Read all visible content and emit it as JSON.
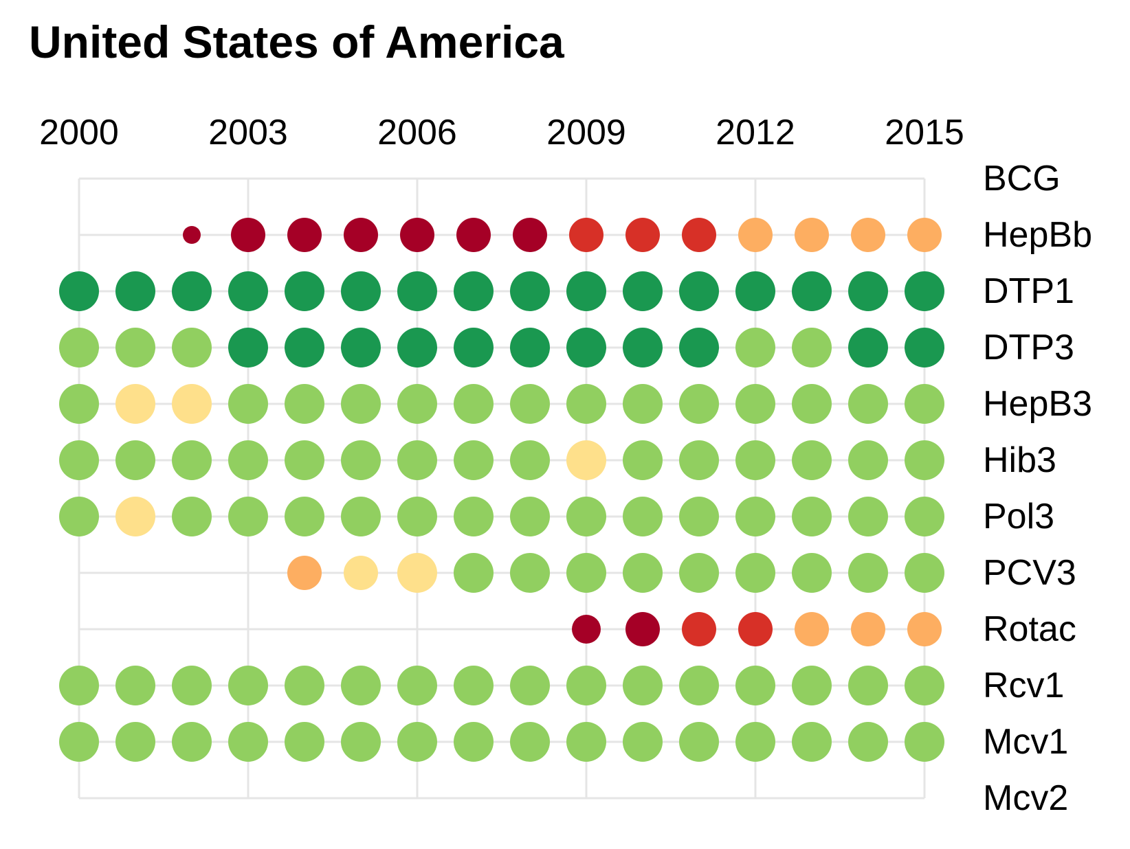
{
  "chart_data": {
    "type": "scatter",
    "title": "United States of America",
    "x": [
      2000,
      2001,
      2002,
      2003,
      2004,
      2005,
      2006,
      2007,
      2008,
      2009,
      2010,
      2011,
      2012,
      2013,
      2014,
      2015
    ],
    "x_ticks": [
      "2000",
      "2003",
      "2006",
      "2009",
      "2012",
      "2015"
    ],
    "categories": [
      "BCG",
      "HepBb",
      "DTP1",
      "DTP3",
      "HepB3",
      "Hib3",
      "Pol3",
      "PCV3",
      "Rotac",
      "Rcv1",
      "Mcv1",
      "Mcv2"
    ],
    "xlabel": "",
    "ylabel": "",
    "grid": true,
    "x_axis_position": "top",
    "y_axis_position": "right",
    "legend": "none",
    "colors": {
      "dark_green": "#1a9850",
      "light_green": "#91cf60",
      "pale_yellow": "#fee08b",
      "light_orange": "#fdae61",
      "red": "#d73027",
      "dark_red": "#a50026",
      "grid": "#e5e5e5"
    },
    "series": [
      {
        "category": "BCG",
        "points": []
      },
      {
        "category": "HepBb",
        "points": [
          {
            "x": 2002,
            "color": "dark_red",
            "size": "small"
          },
          {
            "x": 2003,
            "color": "dark_red",
            "size": "medium"
          },
          {
            "x": 2004,
            "color": "dark_red",
            "size": "medium"
          },
          {
            "x": 2005,
            "color": "dark_red",
            "size": "medium"
          },
          {
            "x": 2006,
            "color": "dark_red",
            "size": "medium"
          },
          {
            "x": 2007,
            "color": "dark_red",
            "size": "medium"
          },
          {
            "x": 2008,
            "color": "dark_red",
            "size": "medium"
          },
          {
            "x": 2009,
            "color": "red",
            "size": "medium"
          },
          {
            "x": 2010,
            "color": "red",
            "size": "medium"
          },
          {
            "x": 2011,
            "color": "red",
            "size": "medium"
          },
          {
            "x": 2012,
            "color": "light_orange",
            "size": "medium"
          },
          {
            "x": 2013,
            "color": "light_orange",
            "size": "medium"
          },
          {
            "x": 2014,
            "color": "light_orange",
            "size": "medium"
          },
          {
            "x": 2015,
            "color": "light_orange",
            "size": "medium"
          }
        ]
      },
      {
        "category": "DTP1",
        "points": [
          {
            "x": 2000,
            "color": "dark_green",
            "size": "large"
          },
          {
            "x": 2001,
            "color": "dark_green",
            "size": "large"
          },
          {
            "x": 2002,
            "color": "dark_green",
            "size": "large"
          },
          {
            "x": 2003,
            "color": "dark_green",
            "size": "large"
          },
          {
            "x": 2004,
            "color": "dark_green",
            "size": "large"
          },
          {
            "x": 2005,
            "color": "dark_green",
            "size": "large"
          },
          {
            "x": 2006,
            "color": "dark_green",
            "size": "large"
          },
          {
            "x": 2007,
            "color": "dark_green",
            "size": "large"
          },
          {
            "x": 2008,
            "color": "dark_green",
            "size": "large"
          },
          {
            "x": 2009,
            "color": "dark_green",
            "size": "large"
          },
          {
            "x": 2010,
            "color": "dark_green",
            "size": "large"
          },
          {
            "x": 2011,
            "color": "dark_green",
            "size": "large"
          },
          {
            "x": 2012,
            "color": "dark_green",
            "size": "large"
          },
          {
            "x": 2013,
            "color": "dark_green",
            "size": "large"
          },
          {
            "x": 2014,
            "color": "dark_green",
            "size": "large"
          },
          {
            "x": 2015,
            "color": "dark_green",
            "size": "large"
          }
        ]
      },
      {
        "category": "DTP3",
        "points": [
          {
            "x": 2000,
            "color": "light_green",
            "size": "large"
          },
          {
            "x": 2001,
            "color": "light_green",
            "size": "large"
          },
          {
            "x": 2002,
            "color": "light_green",
            "size": "large"
          },
          {
            "x": 2003,
            "color": "dark_green",
            "size": "large"
          },
          {
            "x": 2004,
            "color": "dark_green",
            "size": "large"
          },
          {
            "x": 2005,
            "color": "dark_green",
            "size": "large"
          },
          {
            "x": 2006,
            "color": "dark_green",
            "size": "large"
          },
          {
            "x": 2007,
            "color": "dark_green",
            "size": "large"
          },
          {
            "x": 2008,
            "color": "dark_green",
            "size": "large"
          },
          {
            "x": 2009,
            "color": "dark_green",
            "size": "large"
          },
          {
            "x": 2010,
            "color": "dark_green",
            "size": "large"
          },
          {
            "x": 2011,
            "color": "dark_green",
            "size": "large"
          },
          {
            "x": 2012,
            "color": "light_green",
            "size": "large"
          },
          {
            "x": 2013,
            "color": "light_green",
            "size": "large"
          },
          {
            "x": 2014,
            "color": "dark_green",
            "size": "large"
          },
          {
            "x": 2015,
            "color": "dark_green",
            "size": "large"
          }
        ]
      },
      {
        "category": "HepB3",
        "points": [
          {
            "x": 2000,
            "color": "light_green",
            "size": "large"
          },
          {
            "x": 2001,
            "color": "pale_yellow",
            "size": "large"
          },
          {
            "x": 2002,
            "color": "pale_yellow",
            "size": "large"
          },
          {
            "x": 2003,
            "color": "light_green",
            "size": "large"
          },
          {
            "x": 2004,
            "color": "light_green",
            "size": "large"
          },
          {
            "x": 2005,
            "color": "light_green",
            "size": "large"
          },
          {
            "x": 2006,
            "color": "light_green",
            "size": "large"
          },
          {
            "x": 2007,
            "color": "light_green",
            "size": "large"
          },
          {
            "x": 2008,
            "color": "light_green",
            "size": "large"
          },
          {
            "x": 2009,
            "color": "light_green",
            "size": "large"
          },
          {
            "x": 2010,
            "color": "light_green",
            "size": "large"
          },
          {
            "x": 2011,
            "color": "light_green",
            "size": "large"
          },
          {
            "x": 2012,
            "color": "light_green",
            "size": "large"
          },
          {
            "x": 2013,
            "color": "light_green",
            "size": "large"
          },
          {
            "x": 2014,
            "color": "light_green",
            "size": "large"
          },
          {
            "x": 2015,
            "color": "light_green",
            "size": "large"
          }
        ]
      },
      {
        "category": "Hib3",
        "points": [
          {
            "x": 2000,
            "color": "light_green",
            "size": "large"
          },
          {
            "x": 2001,
            "color": "light_green",
            "size": "large"
          },
          {
            "x": 2002,
            "color": "light_green",
            "size": "large"
          },
          {
            "x": 2003,
            "color": "light_green",
            "size": "large"
          },
          {
            "x": 2004,
            "color": "light_green",
            "size": "large"
          },
          {
            "x": 2005,
            "color": "light_green",
            "size": "large"
          },
          {
            "x": 2006,
            "color": "light_green",
            "size": "large"
          },
          {
            "x": 2007,
            "color": "light_green",
            "size": "large"
          },
          {
            "x": 2008,
            "color": "light_green",
            "size": "large"
          },
          {
            "x": 2009,
            "color": "pale_yellow",
            "size": "large"
          },
          {
            "x": 2010,
            "color": "light_green",
            "size": "large"
          },
          {
            "x": 2011,
            "color": "light_green",
            "size": "large"
          },
          {
            "x": 2012,
            "color": "light_green",
            "size": "large"
          },
          {
            "x": 2013,
            "color": "light_green",
            "size": "large"
          },
          {
            "x": 2014,
            "color": "light_green",
            "size": "large"
          },
          {
            "x": 2015,
            "color": "light_green",
            "size": "large"
          }
        ]
      },
      {
        "category": "Pol3",
        "points": [
          {
            "x": 2000,
            "color": "light_green",
            "size": "large"
          },
          {
            "x": 2001,
            "color": "pale_yellow",
            "size": "large"
          },
          {
            "x": 2002,
            "color": "light_green",
            "size": "large"
          },
          {
            "x": 2003,
            "color": "light_green",
            "size": "large"
          },
          {
            "x": 2004,
            "color": "light_green",
            "size": "large"
          },
          {
            "x": 2005,
            "color": "light_green",
            "size": "large"
          },
          {
            "x": 2006,
            "color": "light_green",
            "size": "large"
          },
          {
            "x": 2007,
            "color": "light_green",
            "size": "large"
          },
          {
            "x": 2008,
            "color": "light_green",
            "size": "large"
          },
          {
            "x": 2009,
            "color": "light_green",
            "size": "large"
          },
          {
            "x": 2010,
            "color": "light_green",
            "size": "large"
          },
          {
            "x": 2011,
            "color": "light_green",
            "size": "large"
          },
          {
            "x": 2012,
            "color": "light_green",
            "size": "large"
          },
          {
            "x": 2013,
            "color": "light_green",
            "size": "large"
          },
          {
            "x": 2014,
            "color": "light_green",
            "size": "large"
          },
          {
            "x": 2015,
            "color": "light_green",
            "size": "large"
          }
        ]
      },
      {
        "category": "PCV3",
        "points": [
          {
            "x": 2004,
            "color": "light_orange",
            "size": "medium"
          },
          {
            "x": 2005,
            "color": "pale_yellow",
            "size": "medium"
          },
          {
            "x": 2006,
            "color": "pale_yellow",
            "size": "large"
          },
          {
            "x": 2007,
            "color": "light_green",
            "size": "large"
          },
          {
            "x": 2008,
            "color": "light_green",
            "size": "large"
          },
          {
            "x": 2009,
            "color": "light_green",
            "size": "large"
          },
          {
            "x": 2010,
            "color": "light_green",
            "size": "large"
          },
          {
            "x": 2011,
            "color": "light_green",
            "size": "large"
          },
          {
            "x": 2012,
            "color": "light_green",
            "size": "large"
          },
          {
            "x": 2013,
            "color": "light_green",
            "size": "large"
          },
          {
            "x": 2014,
            "color": "light_green",
            "size": "large"
          },
          {
            "x": 2015,
            "color": "light_green",
            "size": "large"
          }
        ]
      },
      {
        "category": "Rotac",
        "points": [
          {
            "x": 2009,
            "color": "dark_red",
            "size": "small_medium"
          },
          {
            "x": 2010,
            "color": "dark_red",
            "size": "medium"
          },
          {
            "x": 2011,
            "color": "red",
            "size": "medium"
          },
          {
            "x": 2012,
            "color": "red",
            "size": "medium"
          },
          {
            "x": 2013,
            "color": "light_orange",
            "size": "medium"
          },
          {
            "x": 2014,
            "color": "light_orange",
            "size": "medium"
          },
          {
            "x": 2015,
            "color": "light_orange",
            "size": "medium"
          }
        ]
      },
      {
        "category": "Rcv1",
        "points": [
          {
            "x": 2000,
            "color": "light_green",
            "size": "large"
          },
          {
            "x": 2001,
            "color": "light_green",
            "size": "large"
          },
          {
            "x": 2002,
            "color": "light_green",
            "size": "large"
          },
          {
            "x": 2003,
            "color": "light_green",
            "size": "large"
          },
          {
            "x": 2004,
            "color": "light_green",
            "size": "large"
          },
          {
            "x": 2005,
            "color": "light_green",
            "size": "large"
          },
          {
            "x": 2006,
            "color": "light_green",
            "size": "large"
          },
          {
            "x": 2007,
            "color": "light_green",
            "size": "large"
          },
          {
            "x": 2008,
            "color": "light_green",
            "size": "large"
          },
          {
            "x": 2009,
            "color": "light_green",
            "size": "large"
          },
          {
            "x": 2010,
            "color": "light_green",
            "size": "large"
          },
          {
            "x": 2011,
            "color": "light_green",
            "size": "large"
          },
          {
            "x": 2012,
            "color": "light_green",
            "size": "large"
          },
          {
            "x": 2013,
            "color": "light_green",
            "size": "large"
          },
          {
            "x": 2014,
            "color": "light_green",
            "size": "large"
          },
          {
            "x": 2015,
            "color": "light_green",
            "size": "large"
          }
        ]
      },
      {
        "category": "Mcv1",
        "points": [
          {
            "x": 2000,
            "color": "light_green",
            "size": "large"
          },
          {
            "x": 2001,
            "color": "light_green",
            "size": "large"
          },
          {
            "x": 2002,
            "color": "light_green",
            "size": "large"
          },
          {
            "x": 2003,
            "color": "light_green",
            "size": "large"
          },
          {
            "x": 2004,
            "color": "light_green",
            "size": "large"
          },
          {
            "x": 2005,
            "color": "light_green",
            "size": "large"
          },
          {
            "x": 2006,
            "color": "light_green",
            "size": "large"
          },
          {
            "x": 2007,
            "color": "light_green",
            "size": "large"
          },
          {
            "x": 2008,
            "color": "light_green",
            "size": "large"
          },
          {
            "x": 2009,
            "color": "light_green",
            "size": "large"
          },
          {
            "x": 2010,
            "color": "light_green",
            "size": "large"
          },
          {
            "x": 2011,
            "color": "light_green",
            "size": "large"
          },
          {
            "x": 2012,
            "color": "light_green",
            "size": "large"
          },
          {
            "x": 2013,
            "color": "light_green",
            "size": "large"
          },
          {
            "x": 2014,
            "color": "light_green",
            "size": "large"
          },
          {
            "x": 2015,
            "color": "light_green",
            "size": "large"
          }
        ]
      },
      {
        "category": "Mcv2",
        "points": []
      }
    ]
  }
}
